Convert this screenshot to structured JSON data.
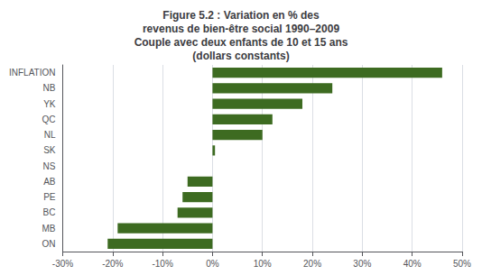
{
  "chart_data": {
    "type": "bar",
    "orientation": "horizontal",
    "title": "Figure 5.2 : Variation en % des\nrevenus de bien-être social 1990–2009\nCouple avec deux enfants de 10 et 15 ans\n(dollars constants)",
    "categories": [
      "INFLATION",
      "NB",
      "YK",
      "QC",
      "NL",
      "SK",
      "NS",
      "AB",
      "PE",
      "BC",
      "MB",
      "ON"
    ],
    "values": [
      46,
      24,
      18,
      12,
      10,
      0.5,
      0,
      -5,
      -6,
      -7,
      -19,
      -21
    ],
    "color": "#3d6b21",
    "xlim": [
      -30,
      50
    ],
    "xticks": [
      {
        "value": -30,
        "label": "-30%"
      },
      {
        "value": -20,
        "label": "-20%"
      },
      {
        "value": -10,
        "label": "-10%"
      },
      {
        "value": 0,
        "label": "0%"
      },
      {
        "value": 10,
        "label": "10%"
      },
      {
        "value": 20,
        "label": "20%"
      },
      {
        "value": 30,
        "label": "30%"
      },
      {
        "value": 40,
        "label": "40%"
      },
      {
        "value": 50,
        "label": "50%"
      }
    ],
    "grid": true
  }
}
